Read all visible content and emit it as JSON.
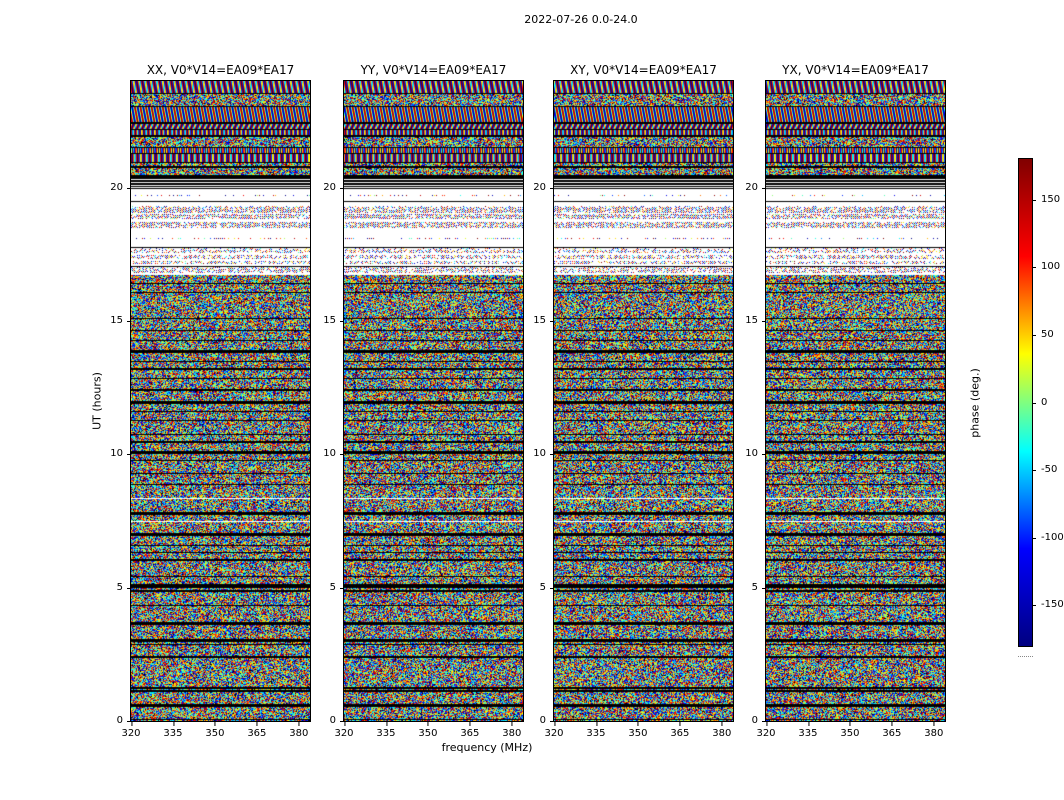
{
  "chart_data": {
    "type": "heatmap",
    "title": "2022-07-26 0.0-24.0",
    "xlabel": "frequency (MHz)",
    "ylabel": "UT (hours)",
    "panels": [
      {
        "pol": "XX",
        "title": "XX, V0*V14=EA09*EA17"
      },
      {
        "pol": "YY",
        "title": "YY, V0*V14=EA09*EA17"
      },
      {
        "pol": "XY",
        "title": "XY, V0*V14=EA09*EA17"
      },
      {
        "pol": "YX",
        "title": "YX, V0*V14=EA09*EA17"
      }
    ],
    "x_range_mhz": [
      320,
      384
    ],
    "xtick_labels": [
      "320",
      "335",
      "350",
      "365",
      "380"
    ],
    "y_range_hours": [
      0,
      24
    ],
    "ytick_labels": [
      "20",
      "15",
      "10",
      "5",
      "0"
    ],
    "colorbar": {
      "label": "phase (deg.)",
      "range_deg": [
        -180,
        180
      ],
      "tick_labels": [
        "150",
        "100",
        "50",
        "0",
        "-50",
        "-100",
        "-150"
      ],
      "colormap": "jet",
      "colormap_stops_top_to_bottom": [
        "#800000",
        "#ff0000",
        "#ffff00",
        "#00ffff",
        "#0000ff",
        "#000080"
      ]
    },
    "values_description": "Interferometric visibility phase (deg, -180..180, jet colormap) versus frequency (x) and UT time (y) for baseline V0*V14 = EA09*EA17 on 2022-07-26; appears as pseudo-random phase noise; solid black horizontal rows are flagged time ranges; white rows are missing data; smooth striped fringe bands occur near 16.5-19.5 h (sparse/dotted) and 21-24 h (coherent fringes)."
  }
}
